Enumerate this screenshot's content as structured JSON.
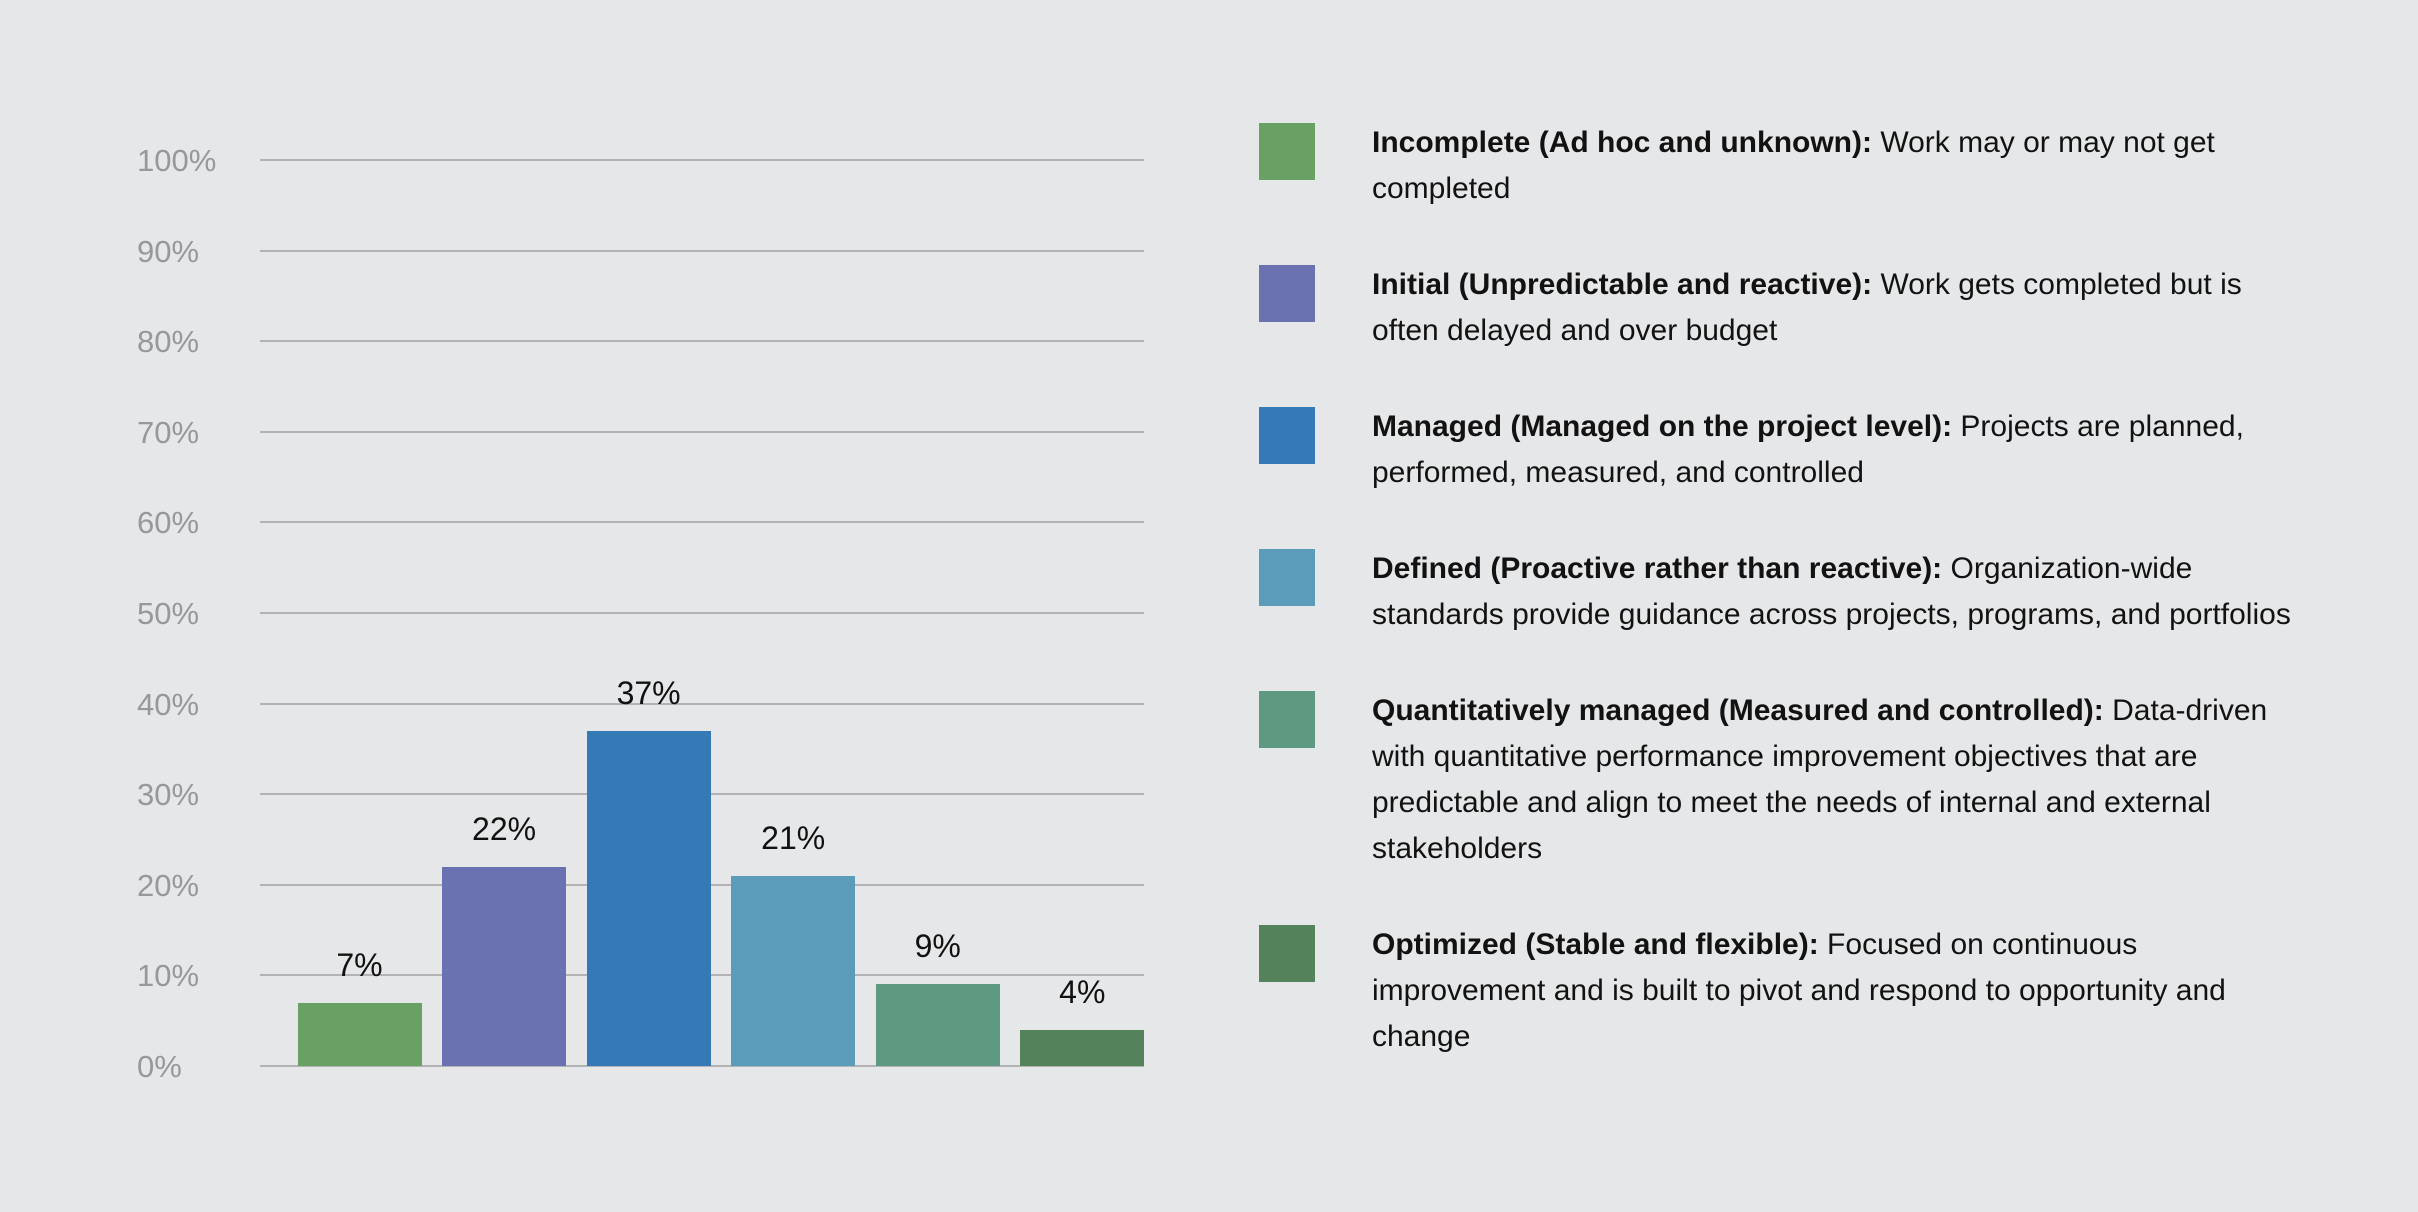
{
  "page": {
    "background_color": "#e6e7e8"
  },
  "chart_data": {
    "type": "bar",
    "title": "",
    "xlabel": "",
    "ylabel": "",
    "ylim": [
      0,
      100
    ],
    "grid": "on",
    "legend_position": "right",
    "y_ticks": [
      "0%",
      "10%",
      "20%",
      "30%",
      "40%",
      "50%",
      "60%",
      "70%",
      "80%",
      "90%",
      "100%"
    ],
    "y_tick_values": [
      0,
      10,
      20,
      30,
      40,
      50,
      60,
      70,
      80,
      90,
      100
    ],
    "categories": [
      "Incomplete",
      "Initial",
      "Managed",
      "Defined",
      "Quantitatively managed",
      "Optimized"
    ],
    "values": [
      7,
      22,
      37,
      21,
      9,
      4
    ],
    "value_labels": [
      "7%",
      "22%",
      "37%",
      "21%",
      "9%",
      "4%"
    ],
    "bar_colors": [
      "#69a064",
      "#6b72b2",
      "#3679b7",
      "#5c9cbb",
      "#5e9a82",
      "#54825a"
    ],
    "axis_label_color": "#97989a",
    "gridline_color": "#b3b3b5",
    "value_label_color": "#111111"
  },
  "legend": {
    "items": [
      {
        "color": "#69a064",
        "label": "Incomplete (Ad hoc and unknown):",
        "description": "Work may or may not get completed"
      },
      {
        "color": "#6b72b2",
        "label": "Initial (Unpredictable and reactive):",
        "description": "Work gets completed but is often delayed and over budget"
      },
      {
        "color": "#3679b7",
        "label": "Managed (Managed on the project level):",
        "description": "Projects are planned, performed, measured, and controlled"
      },
      {
        "color": "#5c9cbb",
        "label": "Defined (Proactive rather than reactive):",
        "description": "Organization-wide standards provide guidance across projects, programs, and portfolios"
      },
      {
        "color": "#5e9a82",
        "label": "Quantitatively managed (Measured and controlled):",
        "description": "Data-driven with quantitative performance improvement objectives that are predictable and align to meet the needs of internal and external stakeholders"
      },
      {
        "color": "#54825a",
        "label": "Optimized (Stable and flexible):",
        "description": "Focused on continuous improvement and is built to pivot and respond to opportunity and change"
      }
    ]
  }
}
